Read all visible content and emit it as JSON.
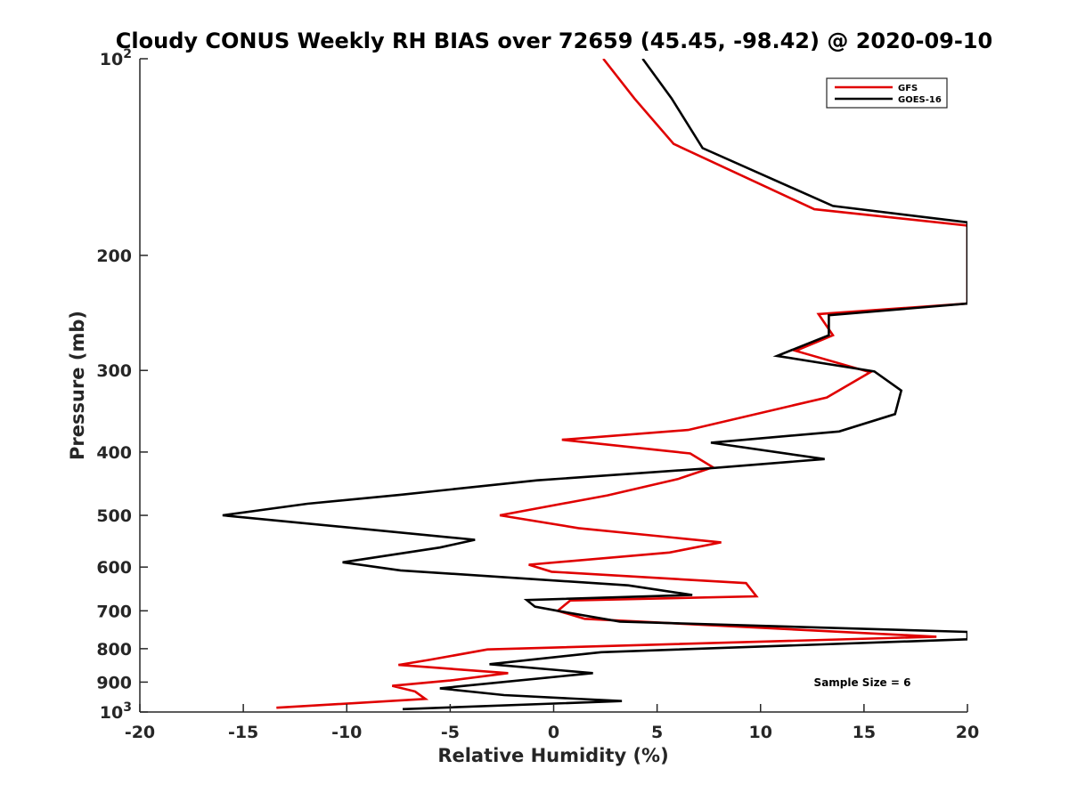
{
  "chart_data": {
    "type": "line",
    "title": "Cloudy CONUS Weekly RH BIAS over 72659 (45.45, -98.42) @ 2020-09-10",
    "xlabel": "Relative Humidity (%)",
    "ylabel": "Pressure (mb)",
    "xlim": [
      -20,
      20
    ],
    "ylim": [
      100,
      1000
    ],
    "y_scale": "log",
    "y_reversed": true,
    "x_ticks": [
      "-20",
      "-15",
      "-10",
      "-5",
      "0",
      "5",
      "10",
      "15",
      "20"
    ],
    "y_ticks": [
      {
        "value": 100,
        "label": "10",
        "sup": "2"
      },
      {
        "value": 200,
        "label": "200",
        "sup": ""
      },
      {
        "value": 300,
        "label": "300",
        "sup": ""
      },
      {
        "value": 400,
        "label": "400",
        "sup": ""
      },
      {
        "value": 500,
        "label": "500",
        "sup": ""
      },
      {
        "value": 600,
        "label": "600",
        "sup": ""
      },
      {
        "value": 700,
        "label": "700",
        "sup": ""
      },
      {
        "value": 800,
        "label": "800",
        "sup": ""
      },
      {
        "value": 900,
        "label": "900",
        "sup": ""
      },
      {
        "value": 1000,
        "label": "10",
        "sup": "3"
      }
    ],
    "grid": false,
    "legend_position": "top-right",
    "annotation": "Sample Size = 6",
    "series": [
      {
        "name": "GFS",
        "color": "#e00000",
        "points": [
          [
            2.4,
            100
          ],
          [
            3.9,
            115
          ],
          [
            5.8,
            135
          ],
          [
            12.6,
            170
          ],
          [
            20,
            180
          ],
          [
            20,
            237
          ],
          [
            12.8,
            246
          ],
          [
            13.5,
            265
          ],
          [
            11.7,
            280
          ],
          [
            15.3,
            302
          ],
          [
            13.2,
            330
          ],
          [
            6.5,
            370
          ],
          [
            0.4,
            383
          ],
          [
            6.6,
            402
          ],
          [
            7.7,
            422
          ],
          [
            6.0,
            440
          ],
          [
            2.6,
            466
          ],
          [
            -2.6,
            500
          ],
          [
            1.2,
            523
          ],
          [
            8.1,
            550
          ],
          [
            5.6,
            570
          ],
          [
            -1.2,
            595
          ],
          [
            -0.1,
            610
          ],
          [
            9.3,
            635
          ],
          [
            9.8,
            665
          ],
          [
            0.8,
            675
          ],
          [
            0.2,
            700
          ],
          [
            1.5,
            720
          ],
          [
            18.5,
            767
          ],
          [
            -3.2,
            802
          ],
          [
            -6.0,
            832
          ],
          [
            -7.5,
            847
          ],
          [
            -2.2,
            872
          ],
          [
            -5.0,
            895
          ],
          [
            -7.8,
            912
          ],
          [
            -6.7,
            930
          ],
          [
            -6.2,
            955
          ],
          [
            -13.4,
            985
          ]
        ]
      },
      {
        "name": "GOES-16",
        "color": "#000000",
        "points": [
          [
            4.3,
            100
          ],
          [
            5.7,
            115
          ],
          [
            7.2,
            137
          ],
          [
            13.5,
            168
          ],
          [
            20,
            178
          ],
          [
            20,
            237
          ],
          [
            13.3,
            247
          ],
          [
            13.3,
            265
          ],
          [
            10.8,
            285
          ],
          [
            15.5,
            301
          ],
          [
            16.8,
            322
          ],
          [
            16.5,
            350
          ],
          [
            13.8,
            372
          ],
          [
            7.6,
            387
          ],
          [
            13.1,
            410
          ],
          [
            7.8,
            423
          ],
          [
            -0.8,
            442
          ],
          [
            -7.4,
            465
          ],
          [
            -11.9,
            480
          ],
          [
            -16.0,
            500
          ],
          [
            -3.8,
            545
          ],
          [
            -5.5,
            560
          ],
          [
            -10.2,
            590
          ],
          [
            -7.4,
            607
          ],
          [
            3.6,
            640
          ],
          [
            6.7,
            662
          ],
          [
            -1.3,
            674
          ],
          [
            -0.9,
            690
          ],
          [
            0.4,
            702
          ],
          [
            3.2,
            727
          ],
          [
            20,
            754
          ],
          [
            20,
            774
          ],
          [
            2.3,
            810
          ],
          [
            -3.1,
            845
          ],
          [
            1.9,
            872
          ],
          [
            -5.5,
            920
          ],
          [
            -2.4,
            942
          ],
          [
            3.3,
            962
          ],
          [
            -7.3,
            990
          ]
        ]
      }
    ]
  }
}
